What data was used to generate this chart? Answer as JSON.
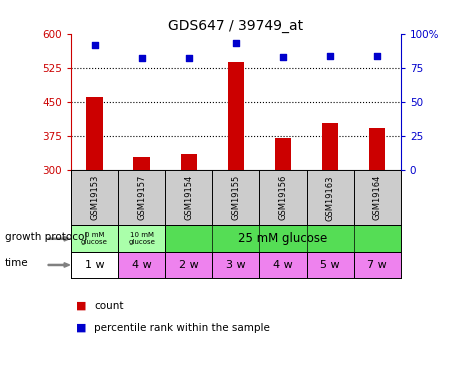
{
  "title": "GDS647 / 39749_at",
  "samples": [
    "GSM19153",
    "GSM19157",
    "GSM19154",
    "GSM19155",
    "GSM19156",
    "GSM19163",
    "GSM19164"
  ],
  "bar_values": [
    462,
    330,
    335,
    538,
    372,
    405,
    393
  ],
  "percentile_values": [
    92,
    82,
    82,
    93,
    83,
    84,
    84
  ],
  "ylim_left": [
    300,
    600
  ],
  "ylim_right": [
    0,
    100
  ],
  "yticks_left": [
    300,
    375,
    450,
    525,
    600
  ],
  "yticks_right": [
    0,
    25,
    50,
    75,
    100
  ],
  "ytick_labels_right": [
    "0",
    "25",
    "50",
    "75",
    "100%"
  ],
  "bar_color": "#cc0000",
  "scatter_color": "#0000cc",
  "time": [
    "1 w",
    "4 w",
    "2 w",
    "3 w",
    "4 w",
    "5 w",
    "7 w"
  ],
  "time_colors": [
    "#ffffff",
    "#ee82ee",
    "#ee82ee",
    "#ee82ee",
    "#ee82ee",
    "#ee82ee",
    "#ee82ee"
  ],
  "growth_light_color": "#aaffaa",
  "growth_dark_color": "#55dd55",
  "sample_bg_color": "#cccccc",
  "legend_bar_label": "count",
  "legend_scatter_label": "percentile rank within the sample",
  "growth_protocol_label": "growth protocol",
  "time_label": "time",
  "background_color": "#ffffff",
  "left_axis_color": "#cc0000",
  "right_axis_color": "#0000cc",
  "bar_width": 0.35
}
